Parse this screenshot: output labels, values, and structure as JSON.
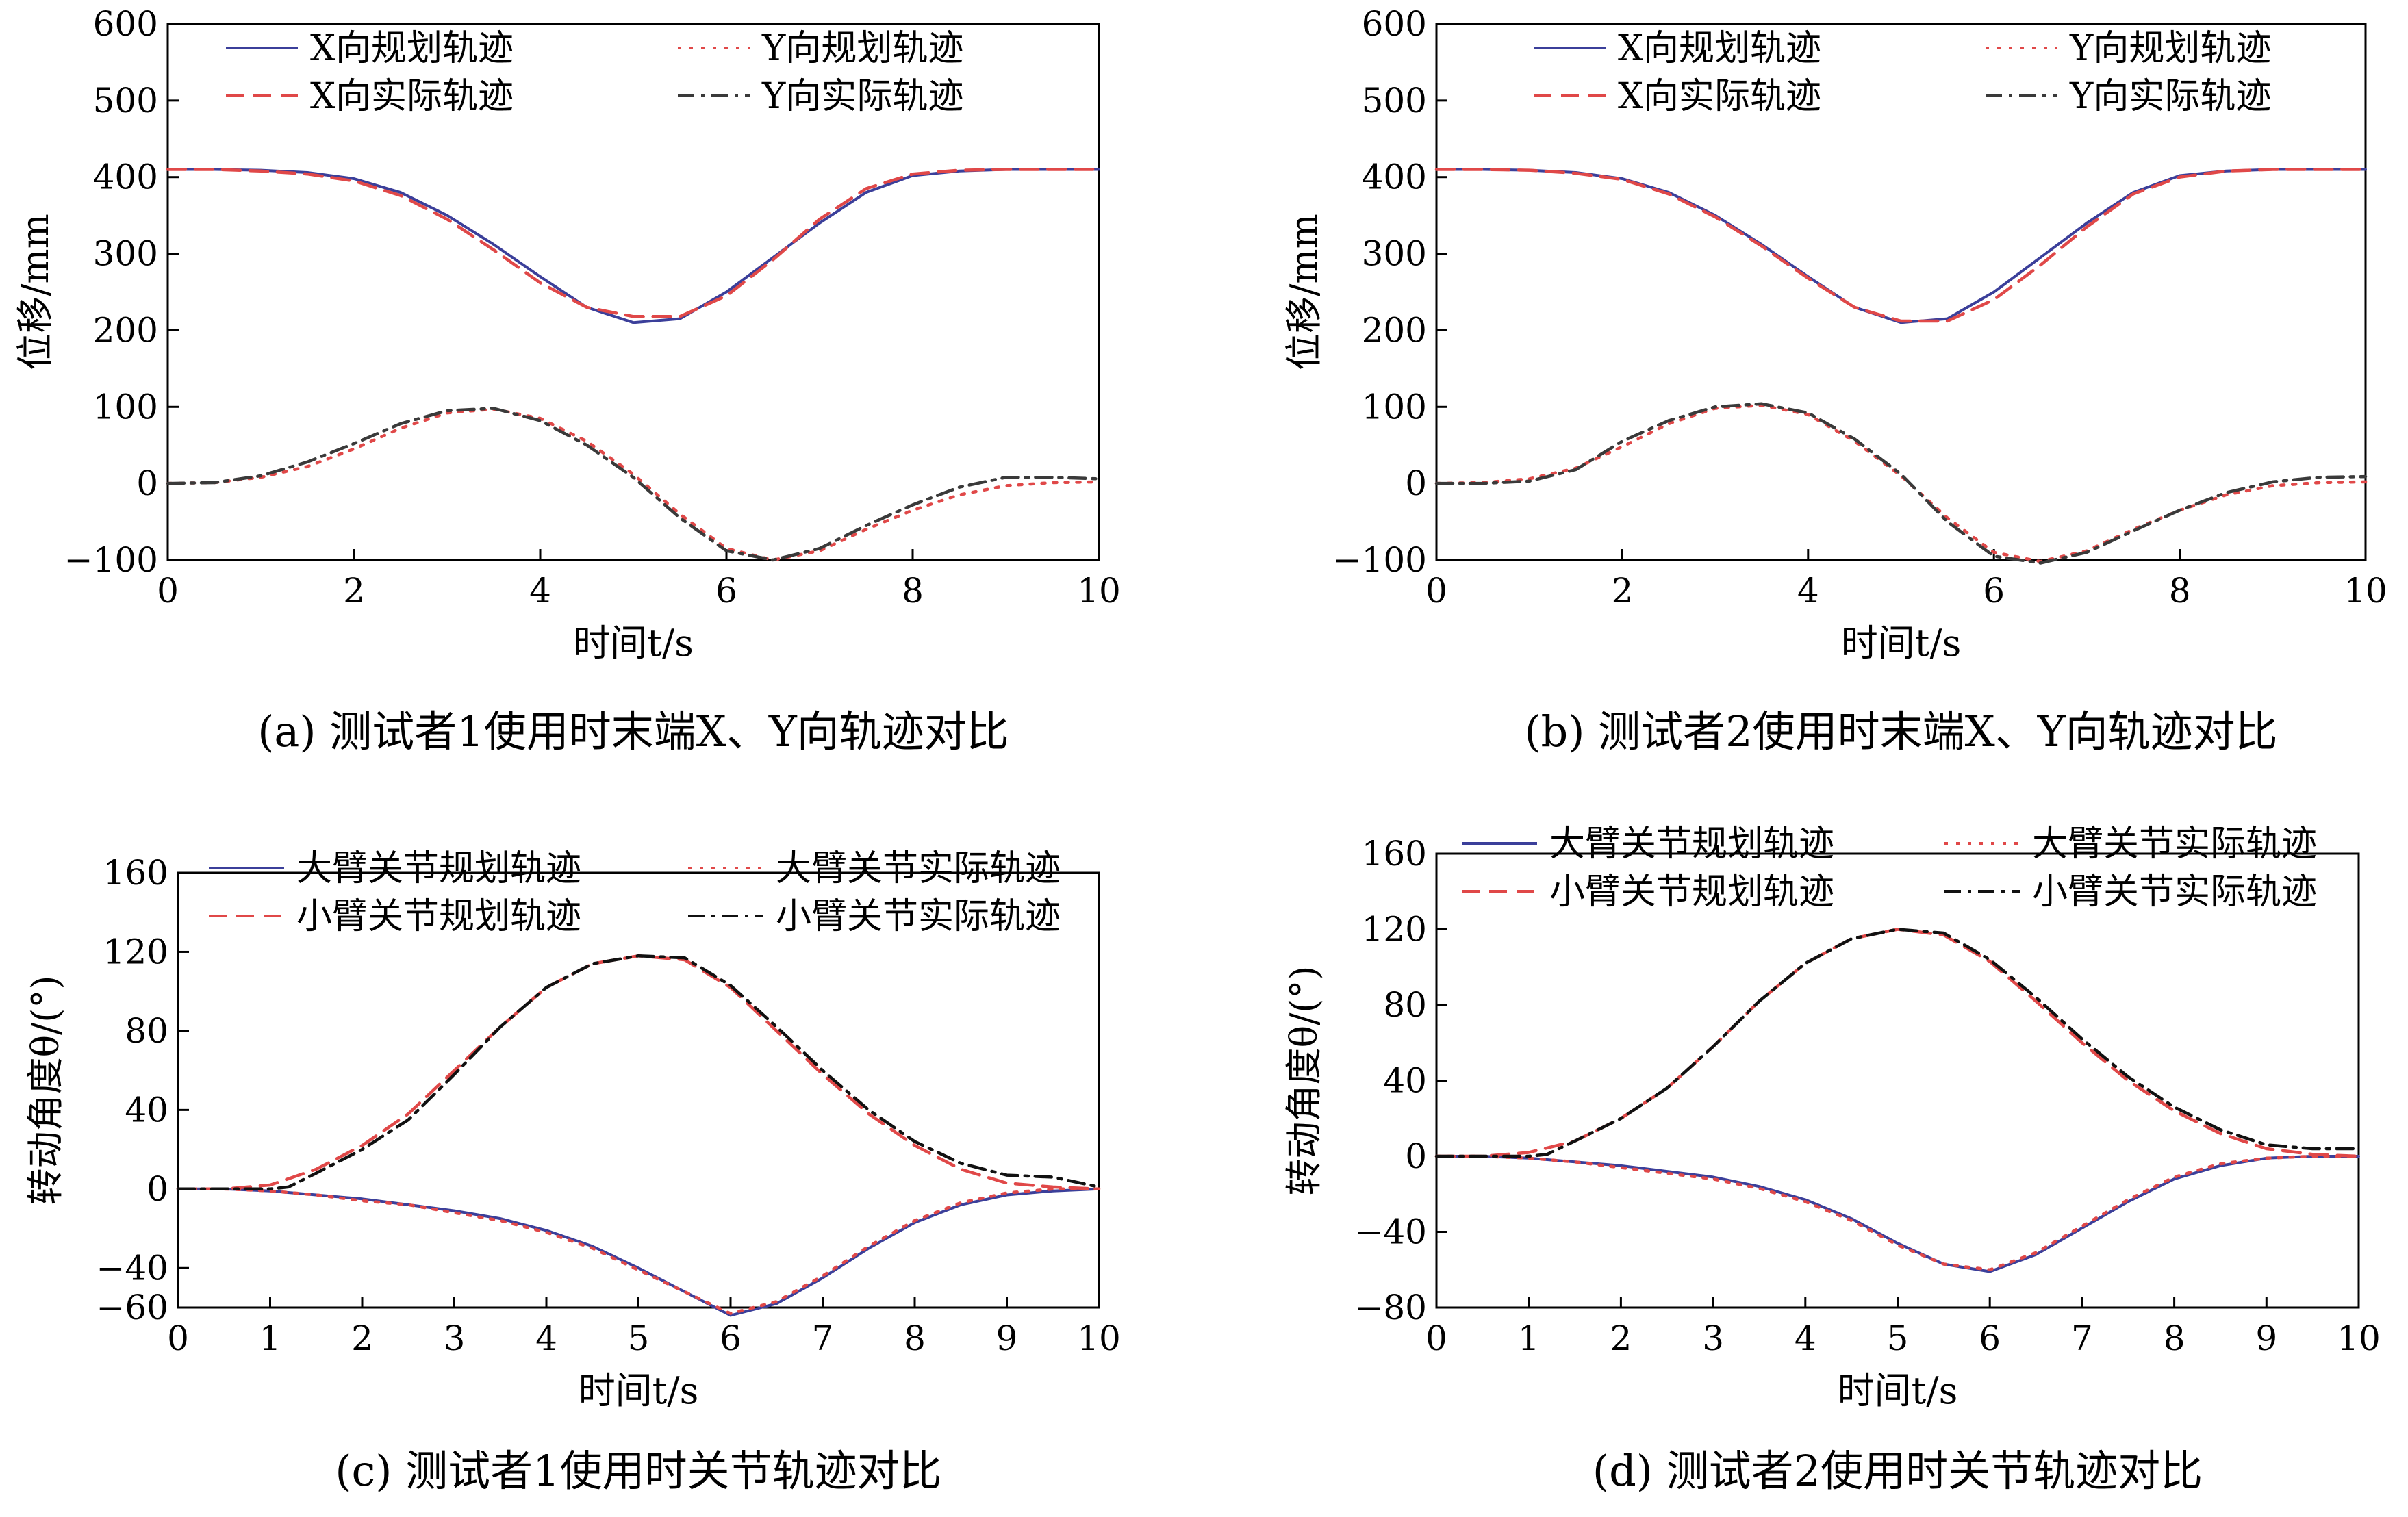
{
  "chart_data": [
    {
      "type": "line",
      "caption": "(a)  测试者1使用时末端X、Y向轨迹对比",
      "xlabel": "时间t/s",
      "ylabel": "位移/mm",
      "xlim": [
        0,
        10
      ],
      "ylim": [
        -100,
        600
      ],
      "xticks": [
        0,
        2,
        4,
        6,
        8,
        10
      ],
      "yticks": [
        -100,
        0,
        100,
        200,
        300,
        400,
        500,
        600
      ],
      "grid": false,
      "legend_position": "top",
      "series": [
        {
          "name": "X向规划轨迹",
          "color": "#3b3f9a",
          "dash": "solid",
          "x": [
            0,
            0.5,
            1,
            1.5,
            2,
            2.5,
            3,
            3.5,
            4,
            4.5,
            5,
            5.5,
            6,
            6.5,
            7,
            7.5,
            8,
            8.5,
            9,
            9.5,
            10
          ],
          "y": [
            410,
            410,
            409,
            406,
            398,
            380,
            350,
            312,
            270,
            230,
            210,
            215,
            250,
            295,
            340,
            380,
            402,
            408,
            410,
            410,
            410
          ]
        },
        {
          "name": "Y向规划轨迹",
          "color": "#e04848",
          "dash": "dot",
          "x": [
            0,
            0.5,
            1,
            1.5,
            2,
            2.5,
            3,
            3.5,
            4,
            4.5,
            5,
            5.5,
            6,
            6.5,
            7,
            7.5,
            8,
            8.5,
            9,
            9.5,
            10
          ],
          "y": [
            0,
            1,
            8,
            22,
            45,
            72,
            92,
            97,
            85,
            55,
            12,
            -40,
            -85,
            -100,
            -88,
            -60,
            -35,
            -15,
            -3,
            1,
            2
          ]
        },
        {
          "name": "X向实际轨迹",
          "color": "#e04848",
          "dash": "dash",
          "x": [
            0,
            0.5,
            1,
            1.5,
            2,
            2.5,
            3,
            3.5,
            4,
            4.5,
            5,
            5.5,
            6,
            6.5,
            7,
            7.5,
            8,
            8.5,
            9,
            9.5,
            10
          ],
          "y": [
            410,
            410,
            408,
            404,
            395,
            376,
            345,
            305,
            262,
            230,
            218,
            218,
            245,
            292,
            345,
            385,
            404,
            409,
            410,
            410,
            410
          ]
        },
        {
          "name": "Y向实际轨迹",
          "color": "#3a3a3a",
          "dash": "dashdot",
          "x": [
            0,
            0.5,
            1,
            1.5,
            2,
            2.5,
            3,
            3.5,
            4,
            4.5,
            5,
            5.5,
            6,
            6.5,
            7,
            7.5,
            8,
            8.5,
            9,
            9.5,
            10
          ],
          "y": [
            0,
            1,
            10,
            28,
            52,
            78,
            95,
            98,
            82,
            50,
            8,
            -45,
            -88,
            -100,
            -85,
            -55,
            -28,
            -5,
            8,
            8,
            6
          ]
        }
      ]
    },
    {
      "type": "line",
      "caption": "(b)  测试者2使用时末端X、Y向轨迹对比",
      "xlabel": "时间t/s",
      "ylabel": "位移/mm",
      "xlim": [
        0,
        10
      ],
      "ylim": [
        -100,
        600
      ],
      "xticks": [
        0,
        2,
        4,
        6,
        8,
        10
      ],
      "yticks": [
        -100,
        0,
        100,
        200,
        300,
        400,
        500,
        600
      ],
      "grid": false,
      "legend_position": "top",
      "series": [
        {
          "name": "X向规划轨迹",
          "color": "#3b3f9a",
          "dash": "solid",
          "x": [
            0,
            0.5,
            1,
            1.5,
            2,
            2.5,
            3,
            3.5,
            4,
            4.5,
            5,
            5.5,
            6,
            6.5,
            7,
            7.5,
            8,
            8.5,
            9,
            9.5,
            10
          ],
          "y": [
            410,
            410,
            409,
            406,
            398,
            380,
            350,
            312,
            270,
            230,
            210,
            215,
            250,
            295,
            340,
            380,
            402,
            408,
            410,
            410,
            410
          ]
        },
        {
          "name": "Y向规划轨迹",
          "color": "#e04848",
          "dash": "dot",
          "x": [
            0,
            0.5,
            1,
            1.5,
            2,
            2.5,
            3,
            3.5,
            4,
            4.5,
            5,
            5.5,
            6,
            6.5,
            7,
            7.5,
            8,
            8.5,
            9,
            9.5,
            10
          ],
          "y": [
            0,
            1,
            6,
            20,
            48,
            78,
            98,
            102,
            90,
            55,
            10,
            -45,
            -90,
            -102,
            -88,
            -60,
            -35,
            -15,
            -3,
            1,
            2
          ]
        },
        {
          "name": "X向实际轨迹",
          "color": "#e04848",
          "dash": "dash",
          "x": [
            0,
            0.5,
            1,
            1.5,
            2,
            2.5,
            3,
            3.5,
            4,
            4.5,
            5,
            5.5,
            6,
            6.5,
            7,
            7.5,
            8,
            8.5,
            9,
            9.5,
            10
          ],
          "y": [
            410,
            410,
            409,
            405,
            397,
            378,
            348,
            310,
            268,
            230,
            212,
            212,
            240,
            285,
            335,
            378,
            400,
            408,
            410,
            410,
            410
          ]
        },
        {
          "name": "Y向实际轨迹",
          "color": "#3a3a3a",
          "dash": "dashdot",
          "x": [
            0,
            0.5,
            1,
            1.5,
            2,
            2.5,
            3,
            3.5,
            4,
            4.5,
            5,
            5.5,
            6,
            6.5,
            7,
            7.5,
            8,
            8.5,
            9,
            9.5,
            10
          ],
          "y": [
            0,
            0,
            3,
            18,
            55,
            82,
            100,
            104,
            92,
            58,
            12,
            -50,
            -95,
            -104,
            -90,
            -62,
            -35,
            -12,
            2,
            8,
            9
          ]
        }
      ]
    },
    {
      "type": "line",
      "caption": "(c)  测试者1使用时关节轨迹对比",
      "xlabel": "时间t/s",
      "ylabel": "转动角度θ/(°)",
      "xlim": [
        0,
        10
      ],
      "ylim": [
        -60,
        160
      ],
      "xticks": [
        0,
        1,
        2,
        3,
        4,
        5,
        6,
        7,
        8,
        9,
        10
      ],
      "yticks": [
        -60,
        -40,
        0,
        40,
        80,
        120,
        160
      ],
      "grid": false,
      "legend_position": "top",
      "series": [
        {
          "name": "大臂关节规划轨迹",
          "color": "#3b3f9a",
          "dash": "solid",
          "x": [
            0,
            0.5,
            1,
            1.5,
            2,
            2.5,
            3,
            3.5,
            4,
            4.5,
            5,
            5.5,
            6,
            6.5,
            7,
            7.5,
            8,
            8.5,
            9,
            9.5,
            10
          ],
          "y": [
            0,
            0,
            -1,
            -3,
            -5,
            -8,
            -11,
            -15,
            -21,
            -29,
            -40,
            -52,
            -64,
            -58,
            -45,
            -30,
            -17,
            -8,
            -3,
            -1,
            0
          ]
        },
        {
          "name": "大臂关节实际轨迹",
          "color": "#e04848",
          "dash": "dot",
          "x": [
            0,
            0.5,
            1,
            1.5,
            2,
            2.5,
            3,
            3.5,
            4,
            4.5,
            5,
            5.5,
            6,
            6.5,
            7,
            7.5,
            8,
            8.5,
            9,
            9.5,
            10
          ],
          "y": [
            0,
            0,
            -1,
            -3,
            -6,
            -8,
            -12,
            -16,
            -22,
            -30,
            -41,
            -52,
            -63,
            -57,
            -44,
            -29,
            -16,
            -7,
            -2,
            0,
            0
          ]
        },
        {
          "name": "小臂关节规划轨迹",
          "color": "#e04848",
          "dash": "dash",
          "x": [
            0,
            0.5,
            1,
            1.5,
            2,
            2.5,
            3,
            3.5,
            4,
            4.5,
            5,
            5.5,
            6,
            6.5,
            7,
            7.5,
            8,
            8.5,
            9,
            9.5,
            10
          ],
          "y": [
            0,
            0,
            2,
            10,
            22,
            38,
            60,
            82,
            102,
            114,
            118,
            116,
            102,
            80,
            58,
            38,
            22,
            10,
            3,
            1,
            0
          ]
        },
        {
          "name": "小臂关节实际轨迹",
          "color": "#111111",
          "dash": "dashdot",
          "x": [
            0,
            0.5,
            1,
            1.2,
            1.5,
            2,
            2.5,
            3,
            3.5,
            4,
            4.5,
            5,
            5.5,
            6,
            6.5,
            7,
            7.5,
            8,
            8.5,
            9,
            9.5,
            10
          ],
          "y": [
            0,
            0,
            0,
            1,
            8,
            20,
            35,
            58,
            82,
            102,
            114,
            118,
            117,
            103,
            82,
            60,
            40,
            24,
            13,
            7,
            6,
            1
          ]
        }
      ]
    },
    {
      "type": "line",
      "caption": "(d)  测试者2使用时关节轨迹对比",
      "xlabel": "时间t/s",
      "ylabel": "转动角度θ/(°)",
      "xlim": [
        0,
        10
      ],
      "ylim": [
        -80,
        160
      ],
      "xticks": [
        0,
        1,
        2,
        3,
        4,
        5,
        6,
        7,
        8,
        9,
        10
      ],
      "yticks": [
        -80,
        -40,
        0,
        40,
        80,
        120,
        160
      ],
      "grid": false,
      "legend_position": "top",
      "series": [
        {
          "name": "大臂关节规划轨迹",
          "color": "#3b3f9a",
          "dash": "solid",
          "x": [
            0,
            0.5,
            1,
            1.5,
            2,
            2.5,
            3,
            3.5,
            4,
            4.5,
            5,
            5.5,
            6,
            6.5,
            7,
            7.5,
            8,
            8.5,
            9,
            9.5,
            10
          ],
          "y": [
            0,
            0,
            -1,
            -3,
            -5,
            -8,
            -11,
            -16,
            -23,
            -33,
            -46,
            -57,
            -61,
            -52,
            -38,
            -24,
            -12,
            -5,
            -1,
            0,
            0
          ]
        },
        {
          "name": "大臂关节实际轨迹",
          "color": "#e04848",
          "dash": "dot",
          "x": [
            0,
            0.5,
            1,
            1.5,
            2,
            2.5,
            3,
            3.5,
            4,
            4.5,
            5,
            5.5,
            6,
            6.5,
            7,
            7.5,
            8,
            8.5,
            9,
            9.5,
            10
          ],
          "y": [
            0,
            0,
            -1,
            -3,
            -6,
            -9,
            -12,
            -17,
            -24,
            -34,
            -47,
            -57,
            -60,
            -51,
            -37,
            -23,
            -11,
            -4,
            -1,
            0,
            0
          ]
        },
        {
          "name": "小臂关节规划轨迹",
          "color": "#e04848",
          "dash": "dash",
          "x": [
            0,
            0.5,
            1,
            1.5,
            2,
            2.5,
            3,
            3.5,
            4,
            4.5,
            5,
            5.5,
            6,
            6.5,
            7,
            7.5,
            8,
            8.5,
            9,
            9.5,
            10
          ],
          "y": [
            0,
            0,
            2,
            8,
            20,
            36,
            58,
            82,
            102,
            115,
            120,
            117,
            103,
            82,
            60,
            40,
            24,
            12,
            4,
            1,
            0
          ]
        },
        {
          "name": "小臂关节实际轨迹",
          "color": "#111111",
          "dash": "dashdot",
          "x": [
            0,
            0.5,
            1,
            1.2,
            1.5,
            2,
            2.5,
            3,
            3.5,
            4,
            4.5,
            5,
            5.5,
            6,
            6.5,
            7,
            7.5,
            8,
            8.5,
            9,
            9.5,
            10
          ],
          "y": [
            0,
            0,
            0,
            1,
            8,
            20,
            36,
            58,
            82,
            102,
            115,
            120,
            118,
            104,
            84,
            62,
            42,
            26,
            14,
            6,
            4,
            4
          ]
        }
      ]
    }
  ]
}
